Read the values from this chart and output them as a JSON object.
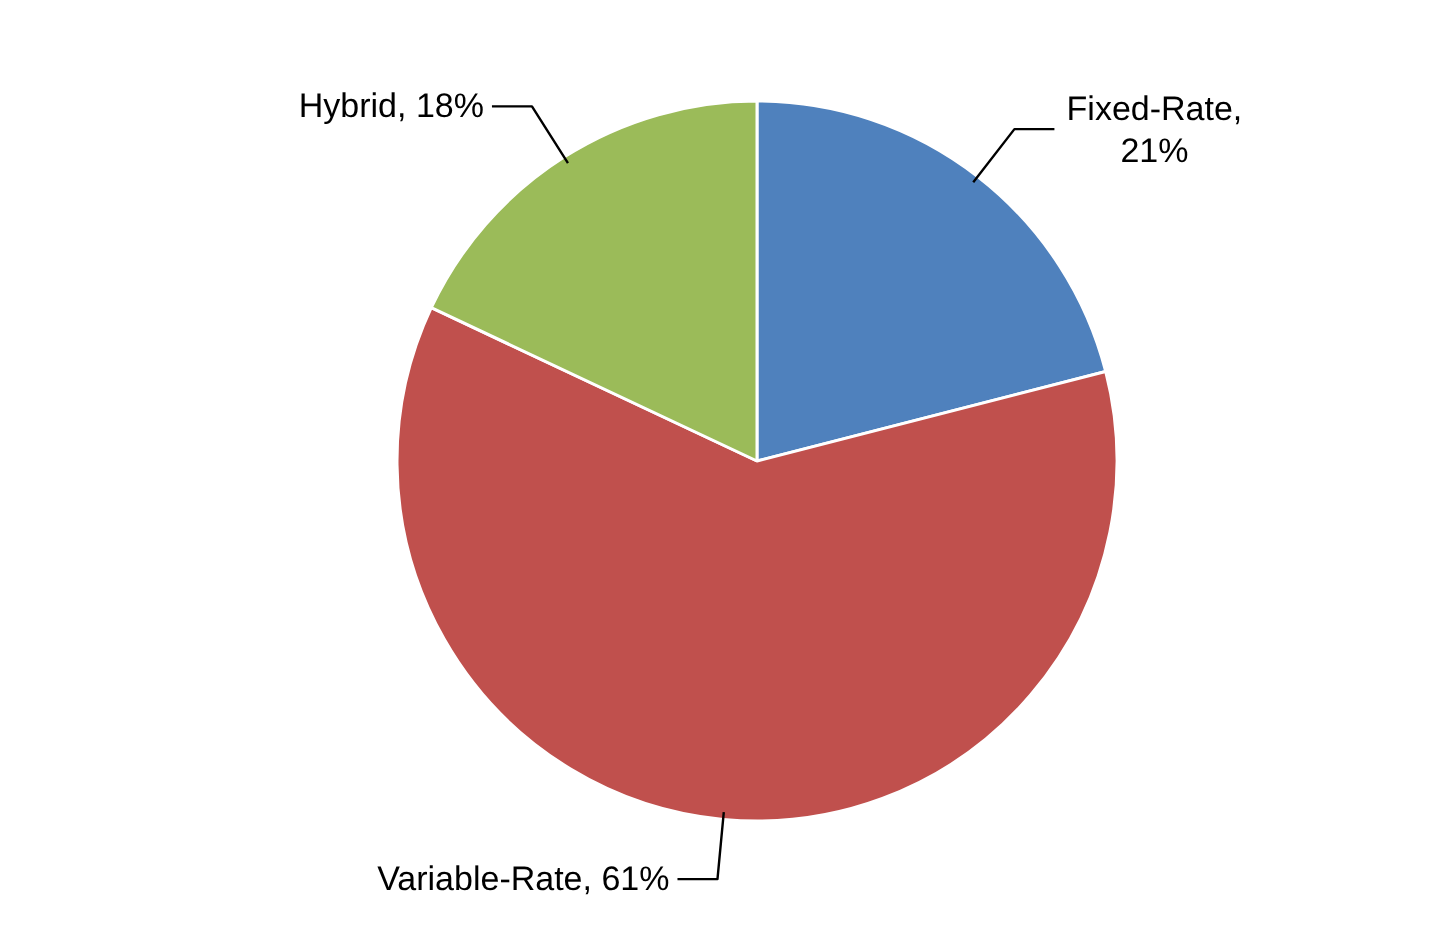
{
  "chart_data": {
    "type": "pie",
    "categories": [
      "Fixed-Rate",
      "Variable-Rate",
      "Hybrid"
    ],
    "values": [
      21,
      61,
      18
    ],
    "value_labels": [
      ", 21%",
      ", 61%",
      ", 18%"
    ],
    "colors": [
      "#4f81bd",
      "#c0504d",
      "#9bbb59"
    ],
    "legend": false
  }
}
